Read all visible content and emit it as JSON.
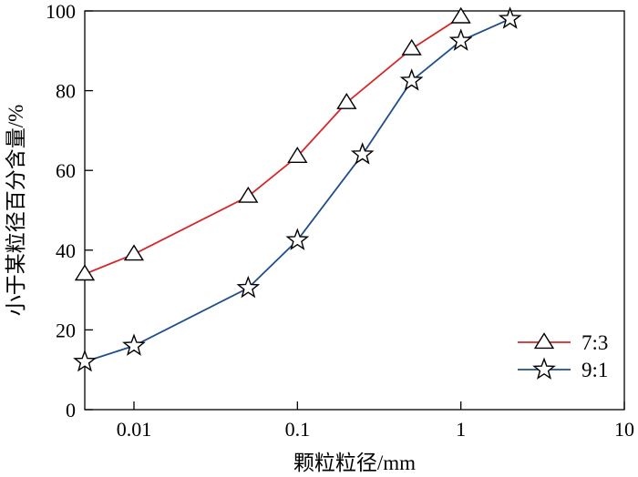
{
  "chart_data": {
    "type": "line",
    "xlabel": "颗粒粒径/mm",
    "ylabel": "小于某粒径百分含量/%",
    "xscale": "log",
    "xlim": [
      0.005,
      10
    ],
    "ylim": [
      0,
      100
    ],
    "xticks": [
      {
        "value": 0.01,
        "label": "0.01"
      },
      {
        "value": 0.1,
        "label": "0.1"
      },
      {
        "value": 1,
        "label": "1"
      },
      {
        "value": 10,
        "label": "10"
      }
    ],
    "yticks": [
      {
        "value": 0,
        "label": "0"
      },
      {
        "value": 20,
        "label": "20"
      },
      {
        "value": 40,
        "label": "40"
      },
      {
        "value": 60,
        "label": "60"
      },
      {
        "value": 80,
        "label": "80"
      },
      {
        "value": 100,
        "label": "100"
      }
    ],
    "grid": false,
    "legend_position": "bottom-right",
    "series": [
      {
        "name": "7:3",
        "color": "#d62728",
        "marker": "triangle",
        "x": [
          0.005,
          0.01,
          0.05,
          0.1,
          0.2,
          0.5,
          1
        ],
        "y": [
          34,
          39,
          53.5,
          63.5,
          77,
          90.5,
          98.5
        ]
      },
      {
        "name": "9:1",
        "color": "#1f4e8c",
        "marker": "star",
        "x": [
          0.005,
          0.01,
          0.05,
          0.1,
          0.25,
          0.5,
          1,
          2
        ],
        "y": [
          12,
          16,
          30.5,
          42.5,
          64,
          82.5,
          92.5,
          98
        ]
      }
    ]
  }
}
